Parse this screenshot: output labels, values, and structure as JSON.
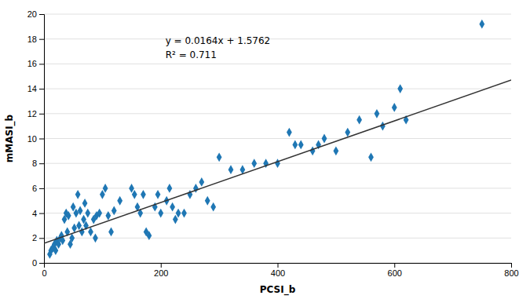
{
  "chart_data": {
    "type": "scatter",
    "x_label": "PCSI_b",
    "y_label": "mMASI_b",
    "xlim": [
      0,
      800
    ],
    "ylim": [
      0,
      20
    ],
    "xticks": [
      0,
      200,
      400,
      600,
      800
    ],
    "yticks": [
      0,
      2,
      4,
      6,
      8,
      10,
      12,
      14,
      16,
      18,
      20
    ],
    "grid": "y",
    "annotations": [
      "y = 0.0164x + 1.5762",
      "R² = 0.711"
    ],
    "series": [
      {
        "type": "scatter",
        "marker": "diamond",
        "x": [
          10,
          12,
          15,
          18,
          20,
          22,
          25,
          28,
          30,
          32,
          35,
          38,
          40,
          42,
          45,
          48,
          50,
          52,
          55,
          58,
          60,
          62,
          65,
          68,
          70,
          72,
          75,
          80,
          85,
          88,
          90,
          95,
          100,
          105,
          110,
          115,
          120,
          130,
          150,
          155,
          160,
          165,
          170,
          175,
          180,
          190,
          195,
          200,
          210,
          215,
          220,
          225,
          230,
          240,
          250,
          260,
          270,
          280,
          290,
          300,
          320,
          340,
          360,
          380,
          400,
          420,
          430,
          440,
          460,
          470,
          480,
          500,
          520,
          540,
          560,
          570,
          580,
          600,
          610,
          620,
          750
        ],
        "values": [
          0.7,
          1.0,
          1.2,
          1.5,
          1.0,
          1.8,
          1.5,
          2.0,
          2.2,
          1.8,
          3.5,
          4.0,
          2.5,
          3.8,
          1.5,
          2.0,
          4.5,
          2.8,
          4.0,
          5.5,
          3.0,
          4.2,
          2.5,
          3.5,
          4.8,
          3.0,
          4.0,
          2.5,
          3.5,
          2.0,
          3.8,
          4.0,
          5.5,
          6.0,
          3.8,
          2.5,
          4.2,
          5.0,
          6.0,
          5.5,
          4.5,
          4.0,
          5.5,
          2.5,
          2.2,
          4.5,
          5.5,
          4.0,
          5.0,
          6.0,
          4.5,
          3.5,
          4.0,
          4.0,
          5.5,
          6.0,
          6.5,
          5.0,
          4.5,
          8.5,
          7.5,
          7.5,
          8.0,
          8.0,
          8.0,
          10.5,
          9.5,
          9.5,
          9.0,
          9.5,
          10.0,
          9.0,
          10.5,
          11.5,
          8.5,
          12.0,
          11.0,
          12.5,
          14.0,
          11.5,
          19.2
        ]
      },
      {
        "type": "line",
        "line_style": "solid",
        "x": [
          0,
          800
        ],
        "values": [
          1.5762,
          14.6962
        ]
      }
    ]
  }
}
